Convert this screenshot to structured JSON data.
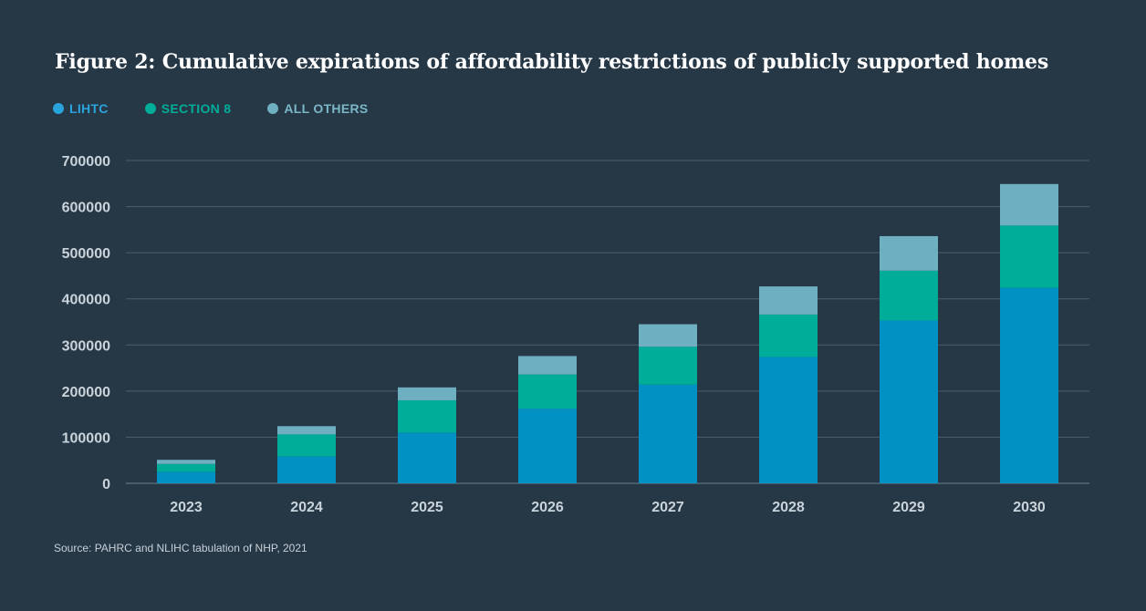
{
  "figure_title": "Figure 2: Cumulative expirations of affordability restrictions of publicly supported homes",
  "source_note": "Source: PAHRC and NLIHC tabulation of NHP, 2021",
  "legend": [
    {
      "label": "LIHTC",
      "color": "#0291c3"
    },
    {
      "label": "SECTION 8",
      "color": "#00ad98"
    },
    {
      "label": "ALL OTHERS",
      "color": "#6eafc1"
    }
  ],
  "chart_data": {
    "type": "bar",
    "stacked": true,
    "title": "Figure 2: Cumulative expirations of affordability restrictions of publicly supported homes",
    "xlabel": "",
    "ylabel": "",
    "categories": [
      "2023",
      "2024",
      "2025",
      "2026",
      "2027",
      "2028",
      "2029",
      "2030"
    ],
    "series": [
      {
        "name": "LIHTC",
        "color": "#0291c3",
        "values": [
          25000,
          58000,
          110000,
          162000,
          214000,
          274000,
          353000,
          424000
        ]
      },
      {
        "name": "SECTION 8",
        "color": "#00ad98",
        "values": [
          17000,
          48000,
          70000,
          74000,
          82000,
          92000,
          108000,
          135000
        ]
      },
      {
        "name": "ALL OTHERS",
        "color": "#6eafc1",
        "values": [
          9000,
          18000,
          28000,
          40000,
          49000,
          61000,
          75000,
          90000
        ]
      }
    ],
    "yticks": [
      "0",
      "100000",
      "200000",
      "300000",
      "400000",
      "500000",
      "600000",
      "700000"
    ],
    "ylim": [
      0,
      700000
    ],
    "grid": true,
    "legend_position": "top-left"
  }
}
